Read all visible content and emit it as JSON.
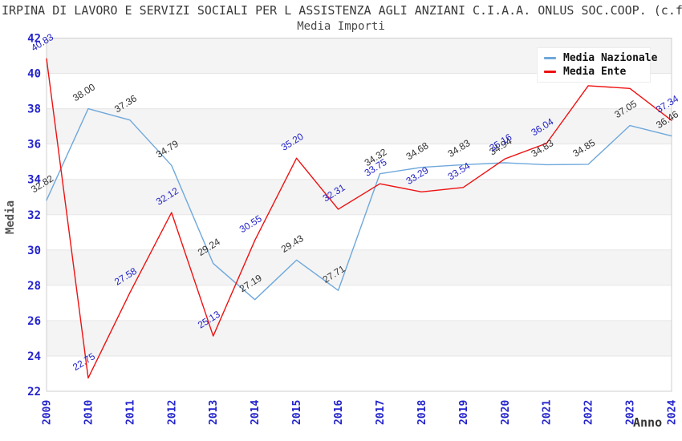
{
  "header": {
    "title": "IRPINA DI LAVORO E SERVIZI SOCIALI PER L ASSISTENZA AGLI ANZIANI C.I.A.A. ONLUS SOC.COOP. (c.f",
    "subtitle": "Media Importi"
  },
  "axes": {
    "y_label": "Media",
    "x_label": "Anno"
  },
  "legend": {
    "position": "top-right",
    "items": [
      {
        "label": "Media Nazionale",
        "color": "#6FA8DC"
      },
      {
        "label": "Media Ente",
        "color": "#EE1111"
      }
    ]
  },
  "chart_data": {
    "type": "line",
    "title": "Media Importi",
    "xlabel": "Anno",
    "ylabel": "Media",
    "ylim": [
      22,
      42
    ],
    "y_tick_step": 2,
    "grid": "horizontal-bands",
    "legend_position": "top-right",
    "tick_color": "#2424CC",
    "band_color": "#F4F4F4",
    "categories": [
      "2009",
      "2010",
      "2011",
      "2012",
      "2013",
      "2014",
      "2015",
      "2016",
      "2017",
      "2018",
      "2019",
      "2020",
      "2021",
      "2022",
      "2023",
      "2024"
    ],
    "series": [
      {
        "name": "Media Nazionale",
        "color": "#6FA8DC",
        "label_color": "#333333",
        "values": [
          32.82,
          38.0,
          37.36,
          34.79,
          29.24,
          27.19,
          29.43,
          27.71,
          34.32,
          34.68,
          34.83,
          34.94,
          34.83,
          34.85,
          37.05,
          36.46
        ]
      },
      {
        "name": "Media Ente",
        "color": "#EE1111",
        "label_color": "#2323C8",
        "values": [
          40.83,
          22.75,
          27.58,
          32.12,
          25.13,
          30.55,
          35.2,
          32.31,
          33.75,
          33.29,
          33.54,
          35.16,
          36.04,
          39.3,
          39.15,
          37.34
        ]
      }
    ]
  }
}
